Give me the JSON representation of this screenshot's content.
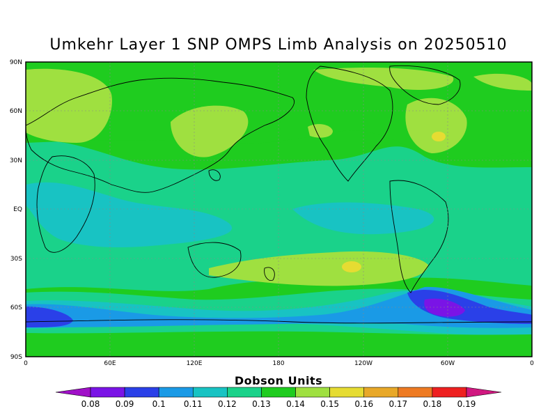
{
  "title": "Umkehr Layer 1 SNP OMPS Limb Analysis on 20250510",
  "map": {
    "lat_ticks": [
      "90N",
      "60N",
      "30N",
      "EQ",
      "30S",
      "60S",
      "90S"
    ],
    "lon_ticks": [
      "0",
      "60E",
      "120E",
      "180",
      "120W",
      "60W",
      "0"
    ],
    "background_level_color": "#33cc33"
  },
  "colorbar": {
    "title": "Dobson Units",
    "labels": [
      "0.08",
      "0.09",
      "0.1",
      "0.11",
      "0.12",
      "0.13",
      "0.14",
      "0.15",
      "0.16",
      "0.17",
      "0.18",
      "0.19"
    ],
    "colors": [
      "#a010c8",
      "#7a14e6",
      "#2a40e8",
      "#1a9ae6",
      "#18c3c3",
      "#1ad28a",
      "#1fcc1f",
      "#9fe040",
      "#e6dc32",
      "#e8a828",
      "#ee7a22",
      "#ee2020",
      "#d01880"
    ]
  }
}
